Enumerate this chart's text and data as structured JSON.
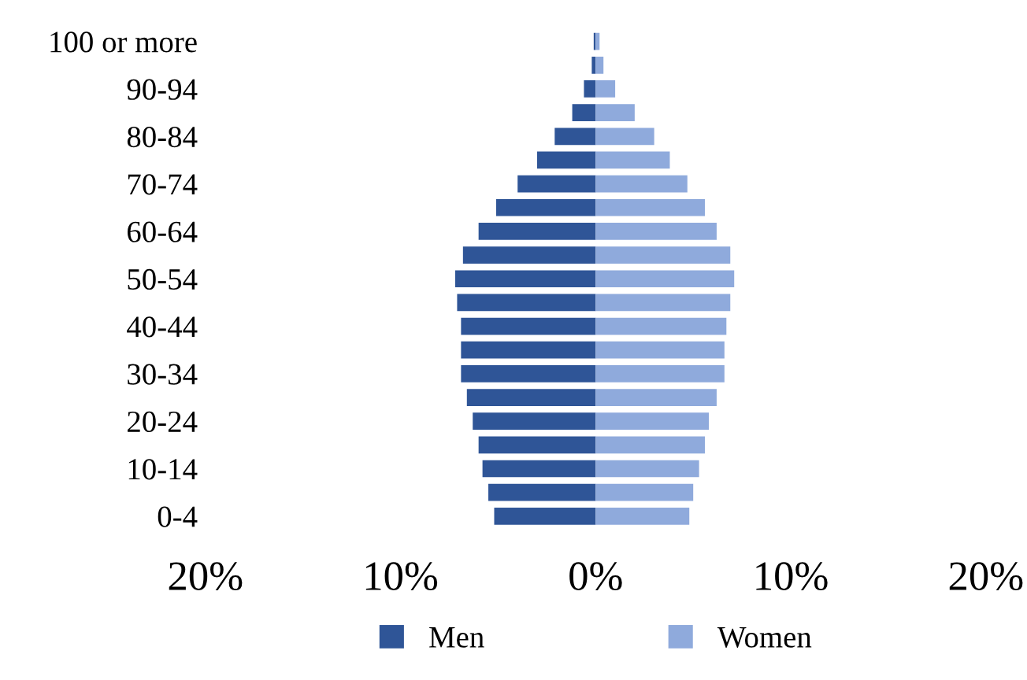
{
  "chart_data": {
    "type": "bar",
    "orientation": "horizontal",
    "stacked": true,
    "categories": [
      "100 or more",
      null,
      "90-94",
      null,
      "80-84",
      null,
      "70-74",
      null,
      "60-64",
      null,
      "50-54",
      null,
      "40-44",
      null,
      "30-34",
      null,
      "20-24",
      null,
      "10-14",
      null,
      "0-4"
    ],
    "series": [
      {
        "name": "Men",
        "color": "#2f5597",
        "values": [
          -0.1,
          -0.2,
          -0.6,
          -1.2,
          -2.1,
          -3.0,
          -4.0,
          -5.1,
          -6.0,
          -6.8,
          -7.2,
          -7.1,
          -6.9,
          -6.9,
          -6.9,
          -6.6,
          -6.3,
          -6.0,
          -5.8,
          -5.5,
          -5.2
        ]
      },
      {
        "name": "Women",
        "color": "#8faadc",
        "values": [
          0.2,
          0.4,
          1.0,
          2.0,
          3.0,
          3.8,
          4.7,
          5.6,
          6.2,
          6.9,
          7.1,
          6.9,
          6.7,
          6.6,
          6.6,
          6.2,
          5.8,
          5.6,
          5.3,
          5.0,
          4.8
        ]
      }
    ],
    "xlim": [
      -20,
      20
    ],
    "xticks": [
      {
        "value": -20,
        "label": "20%"
      },
      {
        "value": -10,
        "label": "10%"
      },
      {
        "value": 0,
        "label": "0%"
      },
      {
        "value": 10,
        "label": "10%"
      },
      {
        "value": 20,
        "label": "20%"
      }
    ],
    "grid": false,
    "legend": "bottom"
  }
}
